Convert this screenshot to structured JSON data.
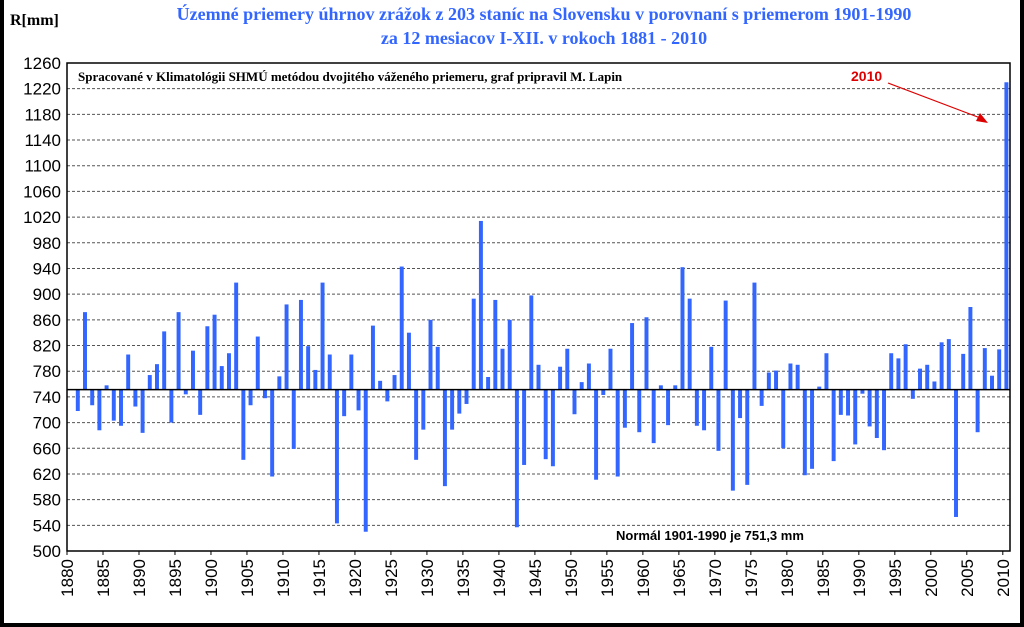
{
  "chart_data": {
    "type": "bar",
    "title": "Územné priemery úhrnov zrážok z 203 staníc na Slovensku v porovnaní s priemerom 1901-1990",
    "subtitle": "za 12 mesiacov I-XII. v rokoch 1881 - 2010",
    "ylabel": "R[mm]",
    "annotation": "Spracované v Klimatológii SHMÚ metódou dvojitého váženého priemeru, graf pripravil M. Lapin",
    "normal_label": "Normál 1901-1990 je 751,3 mm",
    "baseline": 751.3,
    "highlight_label": "2010",
    "ylim": [
      500,
      1260
    ],
    "yticks": [
      500,
      540,
      580,
      620,
      660,
      700,
      740,
      780,
      820,
      860,
      900,
      940,
      980,
      1020,
      1060,
      1100,
      1140,
      1180,
      1220,
      1260
    ],
    "xlim": [
      1880,
      2010
    ],
    "xticks": [
      1880,
      1885,
      1890,
      1895,
      1900,
      1905,
      1910,
      1915,
      1920,
      1925,
      1930,
      1935,
      1940,
      1945,
      1950,
      1955,
      1960,
      1965,
      1970,
      1975,
      1980,
      1985,
      1990,
      1995,
      2000,
      2005,
      2010
    ],
    "grid": true,
    "bar_color": "#3366ff",
    "x": [
      1881,
      1882,
      1883,
      1884,
      1885,
      1886,
      1887,
      1888,
      1889,
      1890,
      1891,
      1892,
      1893,
      1894,
      1895,
      1896,
      1897,
      1898,
      1899,
      1900,
      1901,
      1902,
      1903,
      1904,
      1905,
      1906,
      1907,
      1908,
      1909,
      1910,
      1911,
      1912,
      1913,
      1914,
      1915,
      1916,
      1917,
      1918,
      1919,
      1920,
      1921,
      1922,
      1923,
      1924,
      1925,
      1926,
      1927,
      1928,
      1929,
      1930,
      1931,
      1932,
      1933,
      1934,
      1935,
      1936,
      1937,
      1938,
      1939,
      1940,
      1941,
      1942,
      1943,
      1944,
      1945,
      1946,
      1947,
      1948,
      1949,
      1950,
      1951,
      1952,
      1953,
      1954,
      1955,
      1956,
      1957,
      1958,
      1959,
      1960,
      1961,
      1962,
      1963,
      1964,
      1965,
      1966,
      1967,
      1968,
      1969,
      1970,
      1971,
      1972,
      1973,
      1974,
      1975,
      1976,
      1977,
      1978,
      1979,
      1980,
      1981,
      1982,
      1983,
      1984,
      1985,
      1986,
      1987,
      1988,
      1989,
      1990,
      1991,
      1992,
      1993,
      1994,
      1995,
      1996,
      1997,
      1998,
      1999,
      2000,
      2001,
      2002,
      2003,
      2004,
      2005,
      2006,
      2007,
      2008,
      2009,
      2010
    ],
    "values": [
      718,
      872,
      727,
      688,
      758,
      703,
      695,
      806,
      725,
      684,
      774,
      791,
      842,
      700,
      872,
      744,
      812,
      712,
      850,
      868,
      788,
      808,
      918,
      642,
      727,
      834,
      738,
      616,
      772,
      884,
      659,
      891,
      819,
      782,
      918,
      806,
      543,
      710,
      806,
      719,
      530,
      851,
      765,
      733,
      774,
      943,
      840,
      642,
      689,
      860,
      818,
      601,
      689,
      714,
      729,
      893,
      1014,
      771,
      891,
      815,
      860,
      537,
      634,
      898,
      790,
      643,
      632,
      787,
      815,
      713,
      763,
      792,
      611,
      743,
      815,
      616,
      692,
      855,
      685,
      864,
      668,
      758,
      696,
      758,
      942,
      893,
      695,
      688,
      818,
      656,
      890,
      594,
      707,
      603,
      918,
      726,
      778,
      781,
      660,
      792,
      790,
      618,
      628,
      756,
      808,
      640,
      712,
      711,
      666,
      745,
      694,
      676,
      657,
      808,
      800,
      822,
      737,
      784,
      790,
      764,
      825,
      830,
      553,
      807,
      880,
      685,
      816,
      773,
      814,
      1230
    ]
  }
}
